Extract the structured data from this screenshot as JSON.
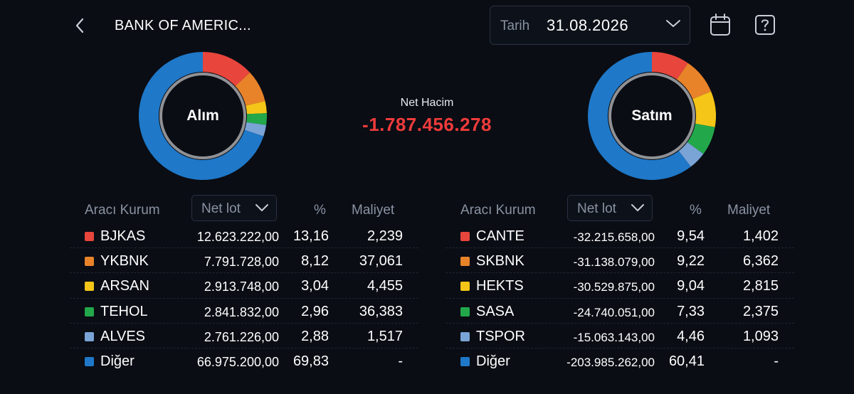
{
  "header": {
    "title": "BANK OF AMERIC...",
    "date_label": "Tarih",
    "date_value": "31.08.2026"
  },
  "icons": {
    "back": "chevron-left-icon",
    "date_dropdown": "chevron-down-icon",
    "calendar": "calendar-icon",
    "help": "help-icon"
  },
  "summary": {
    "net_label": "Net Hacim",
    "net_value": "-1.787.456.278",
    "net_color": "#ef3b3b"
  },
  "colors": {
    "red": "#e8453c",
    "orange": "#e8832a",
    "yellow": "#f5c518",
    "green": "#22a84a",
    "lightblue": "#7aa3d6",
    "blue": "#1f78c8"
  },
  "buy": {
    "donut_label": "Alım",
    "columns": {
      "kurum": "Aracı Kurum",
      "select": "Net lot",
      "pct": "%",
      "maliyet": "Maliyet"
    },
    "rows": [
      {
        "name": "BJKAS",
        "lot": "12.623.222,00",
        "pct": "13,16",
        "maliyet": "2,239",
        "color": "#e8453c"
      },
      {
        "name": "YKBNK",
        "lot": "7.791.728,00",
        "pct": "8,12",
        "maliyet": "37,061",
        "color": "#e8832a"
      },
      {
        "name": "ARSAN",
        "lot": "2.913.748,00",
        "pct": "3,04",
        "maliyet": "4,455",
        "color": "#f5c518"
      },
      {
        "name": "TEHOL",
        "lot": "2.841.832,00",
        "pct": "2,96",
        "maliyet": "36,383",
        "color": "#22a84a"
      },
      {
        "name": "ALVES",
        "lot": "2.761.226,00",
        "pct": "2,88",
        "maliyet": "1,517",
        "color": "#7aa3d6"
      },
      {
        "name": "Diğer",
        "lot": "66.975.200,00",
        "pct": "69,83",
        "maliyet": "-",
        "color": "#1f78c8"
      }
    ]
  },
  "sell": {
    "donut_label": "Satım",
    "columns": {
      "kurum": "Aracı Kurum",
      "select": "Net lot",
      "pct": "%",
      "maliyet": "Maliyet"
    },
    "rows": [
      {
        "name": "CANTE",
        "lot": "-32.215.658,00",
        "pct": "9,54",
        "maliyet": "1,402",
        "color": "#e8453c"
      },
      {
        "name": "SKBNK",
        "lot": "-31.138.079,00",
        "pct": "9,22",
        "maliyet": "6,362",
        "color": "#e8832a"
      },
      {
        "name": "HEKTS",
        "lot": "-30.529.875,00",
        "pct": "9,04",
        "maliyet": "2,815",
        "color": "#f5c518"
      },
      {
        "name": "SASA",
        "lot": "-24.740.051,00",
        "pct": "7,33",
        "maliyet": "2,375",
        "color": "#22a84a"
      },
      {
        "name": "TSPOR",
        "lot": "-15.063.143,00",
        "pct": "4,46",
        "maliyet": "1,093",
        "color": "#7aa3d6"
      },
      {
        "name": "Diğer",
        "lot": "-203.985.262,00",
        "pct": "60,41",
        "maliyet": "-",
        "color": "#1f78c8"
      }
    ]
  }
}
